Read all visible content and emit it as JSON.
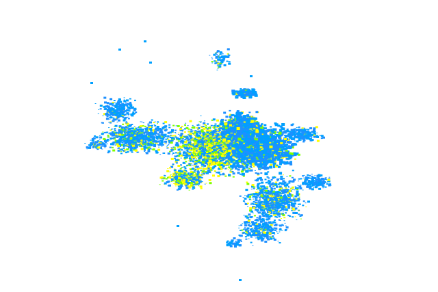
{
  "map": {
    "background_color": "#ffffff",
    "echo_colors": {
      "light": "#00a0ff",
      "light_alt": "#1e90ff",
      "moderate": "#7fff00",
      "strong": "#ffff00"
    }
  }
}
